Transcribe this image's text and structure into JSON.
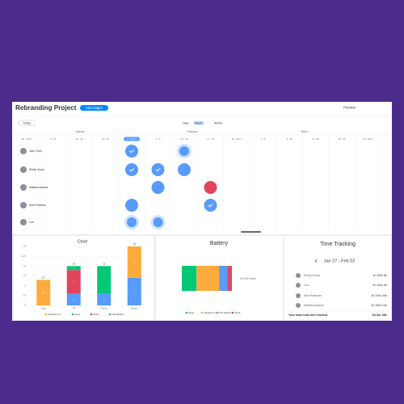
{
  "header": {
    "title": "Rebranding Project",
    "add_widget": "Add widget",
    "preview": "Preview"
  },
  "timeline": {
    "today": "Today",
    "views": [
      "Days",
      "Weeks",
      "Months"
    ],
    "active_view": "Weeks",
    "months": [
      "January",
      "February",
      "March"
    ],
    "weeks": [
      "30 - Jan 5",
      "6 - 12",
      "13 - 19",
      "20 - 26",
      "27 - Feb 2",
      "3 - 9",
      "10 - 16",
      "17 - 23",
      "24 - Mar 1",
      "2 - 8",
      "9 - 15",
      "16 - 22",
      "23 - 29",
      "30 - Apr 5"
    ],
    "current_week": "27 - Feb 2",
    "people": [
      {
        "name": "John Chris",
        "tasks": [
          {
            "week": "27 - Feb 2",
            "status": "done"
          },
          {
            "week": "10 - 16",
            "status": "pending"
          }
        ]
      },
      {
        "name": "Shelly Gross",
        "tasks": [
          {
            "week": "27 - Feb 2",
            "status": "done"
          },
          {
            "week": "3 - 9",
            "status": "done"
          },
          {
            "week": "10 - 16",
            "status": "open"
          }
        ]
      },
      {
        "name": "Matthew Adams",
        "tasks": [
          {
            "week": "3 - 9",
            "status": "open"
          },
          {
            "week": "17 - 23",
            "status": "stuck"
          }
        ]
      },
      {
        "name": "Ariel Rothman",
        "tasks": [
          {
            "week": "27 - Feb 2",
            "status": "open"
          },
          {
            "week": "17 - 23",
            "status": "done"
          }
        ]
      },
      {
        "name": "Lea",
        "tasks": [
          {
            "week": "27 - Feb 2",
            "status": "pending"
          },
          {
            "week": "3 - 9",
            "status": "pending"
          }
        ]
      }
    ]
  },
  "chart_data": {
    "type": "bar",
    "title": "Chart",
    "stacked": true,
    "categories": [
      "Legal",
      "TR",
      "Finance",
      "Design"
    ],
    "series": [
      {
        "name": "Not Started",
        "color": "#579bfc",
        "values": [
          0,
          3,
          3,
          7
        ]
      },
      {
        "name": "Stuck",
        "color": "#e2445c",
        "values": [
          0,
          6,
          0,
          0
        ]
      },
      {
        "name": "Done",
        "color": "#00c875",
        "values": [
          0,
          1,
          7,
          0
        ]
      },
      {
        "name": "Working on it",
        "color": "#fdab3d",
        "values": [
          6.5,
          0,
          0,
          8
        ]
      }
    ],
    "total_labels": [
      6.5,
      10,
      10,
      15
    ],
    "ylim": [
      0,
      15
    ],
    "yticks": [
      0,
      2.5,
      5,
      7.5,
      10,
      12.5,
      15
    ]
  },
  "battery": {
    "title": "Battery",
    "summary": "29.4% Done",
    "segments": [
      {
        "name": "Done",
        "color": "#00c875",
        "value": 29.4
      },
      {
        "name": "Working on it",
        "color": "#fdab3d",
        "value": 45
      },
      {
        "name": "Not Started",
        "color": "#579bfc",
        "value": 16.6
      },
      {
        "name": "Stuck",
        "color": "#e2445c",
        "value": 9
      }
    ]
  },
  "time_tracking": {
    "title": "Time Tracking",
    "range": "Jan 27 - Feb 02",
    "rows": [
      [
        "Shelly Gross",
        "1h 33m 8s"
      ],
      [
        "Lea",
        "1h 25m 4s"
      ],
      [
        "Ariel Rothman",
        "1h 29m 33s"
      ],
      [
        "Matthew Adams",
        "1h 39m 14s"
      ]
    ],
    "total_label": "Your team total time tracked",
    "total": "6h 8m 35s"
  }
}
